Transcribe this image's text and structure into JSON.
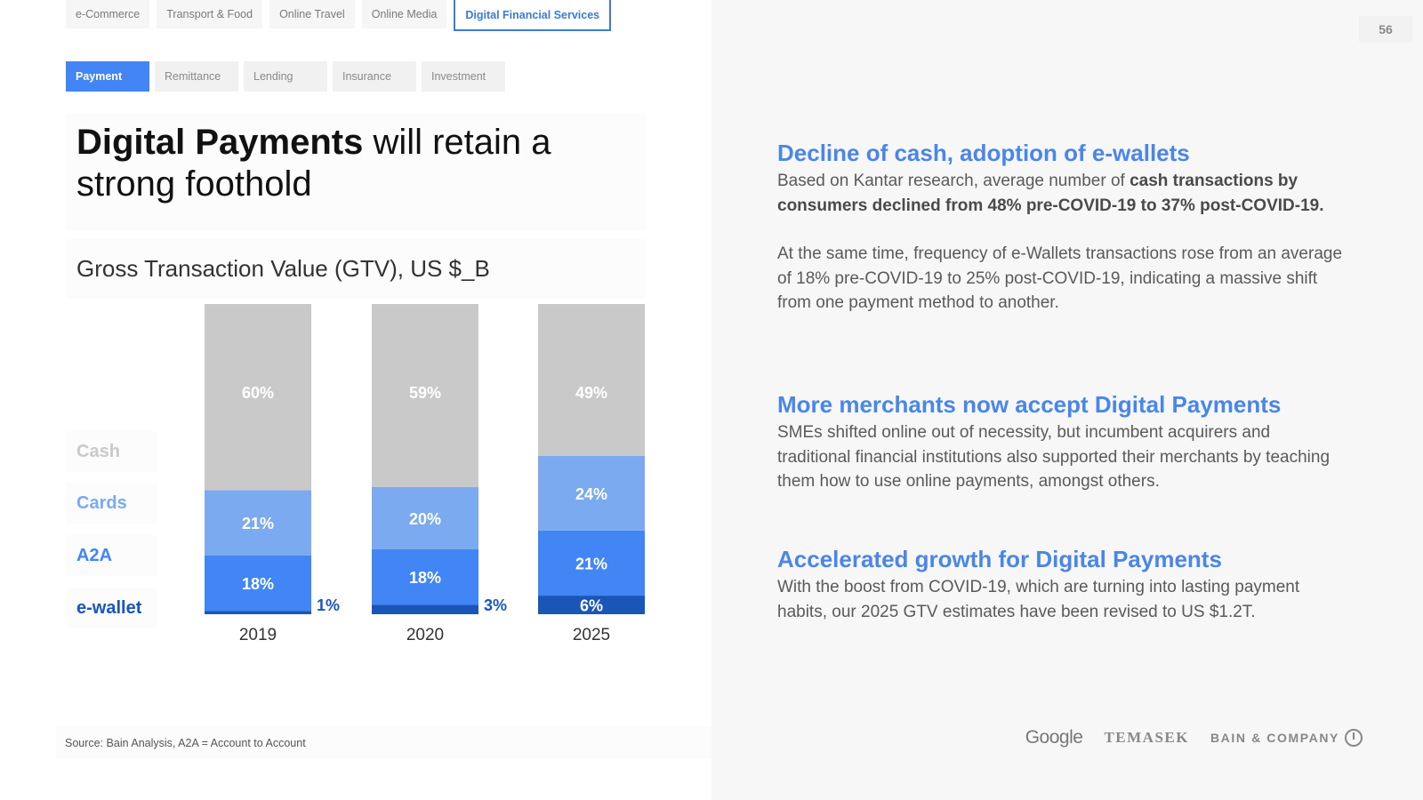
{
  "nav": {
    "categories": [
      "e-Commerce",
      "Transport & Food",
      "Online Travel",
      "Online Media",
      "Digital Financial Services"
    ],
    "active_category": 4,
    "subtabs": [
      "Payment",
      "Remittance",
      "Lending",
      "Insurance",
      "Investment"
    ],
    "active_subtab": 0
  },
  "headline": {
    "bold": "Digital Payments",
    "rest": " will retain a strong foothold"
  },
  "chart_title": "Gross Transaction Value (GTV), US $_B",
  "legend": [
    {
      "label": "Cash",
      "color": "#c9c9c9"
    },
    {
      "label": "Cards",
      "color": "#7baaf0"
    },
    {
      "label": "A2A",
      "color": "#4285f4"
    },
    {
      "label": "e-wallet",
      "color": "#1a56b8"
    }
  ],
  "chart_data": {
    "type": "bar",
    "stacked": true,
    "title": "Gross Transaction Value (GTV), US $_B",
    "categories": [
      "2019",
      "2020",
      "2025"
    ],
    "series": [
      {
        "name": "e-wallet",
        "values": [
          1,
          3,
          6
        ],
        "labels": [
          "1%",
          "3%",
          "6%"
        ],
        "color": "#1a56b8"
      },
      {
        "name": "A2A",
        "values": [
          18,
          18,
          21
        ],
        "labels": [
          "18%",
          "18%",
          "21%"
        ],
        "color": "#4285f4"
      },
      {
        "name": "Cards",
        "values": [
          21,
          20,
          24
        ],
        "labels": [
          "21%",
          "20%",
          "24%"
        ],
        "color": "#7baaf0"
      },
      {
        "name": "Cash",
        "values": [
          60,
          59,
          49
        ],
        "labels": [
          "60%",
          "59%",
          "49%"
        ],
        "color": "#c9c9c9"
      }
    ],
    "ylim": [
      0,
      100
    ],
    "xlabel": "",
    "ylabel": ""
  },
  "source": "Source: Bain Analysis, A2A = Account to Account",
  "page_number": "56",
  "sections": [
    {
      "title": "Decline of cash, adoption of e-wallets",
      "p1_lead": "Based on Kantar research, average number of ",
      "p1_bold": "cash transactions by consumers declined from 48% pre-COVID-19 to 37% post-COVID-19.",
      "p2": "At the same time, frequency of e-Wallets transactions rose from an average of 18% pre-COVID-19 to 25% post-COVID-19, indicating a massive shift from one payment method to another."
    },
    {
      "title": "More merchants now accept Digital Payments",
      "body": "SMEs shifted online out of necessity, but incumbent acquirers and traditional financial institutions also supported their merchants by teaching them how to use online payments, amongst others."
    },
    {
      "title": "Accelerated growth for Digital Payments",
      "body": "With the boost from COVID-19, which are turning into lasting payment habits, our 2025 GTV estimates have been revised to US $1.2T."
    }
  ],
  "logos": {
    "google": "Google",
    "temasek": "TEMASEK",
    "bain": "BAIN & COMPANY"
  }
}
